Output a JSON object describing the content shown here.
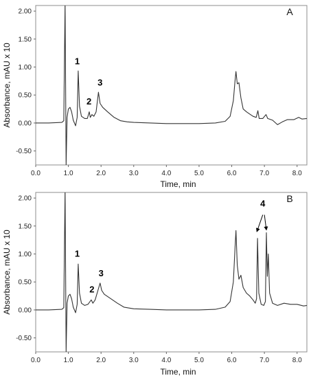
{
  "chart_data": [
    {
      "type": "line",
      "panel_label": "A",
      "xlabel": "Time, min",
      "ylabel": "Absorbance, mAU x 10",
      "xlim": [
        0.0,
        8.3
      ],
      "ylim": [
        -0.75,
        2.1
      ],
      "x_ticks": [
        "0.0",
        "1.0",
        "2.0",
        "3.0",
        "4.0",
        "5.0",
        "6.0",
        "7.0",
        "8.0"
      ],
      "y_ticks": [
        "2.00",
        "1.50",
        "1.00",
        "0.50",
        "0.00",
        "-0.50"
      ],
      "series": [
        {
          "color": "#333333",
          "points": [
            [
              0.0,
              0.0
            ],
            [
              0.4,
              0.0
            ],
            [
              0.8,
              0.01
            ],
            [
              0.86,
              0.04
            ],
            [
              0.9,
              2.15
            ],
            [
              0.93,
              -0.75
            ],
            [
              0.96,
              0.1
            ],
            [
              1.0,
              0.25
            ],
            [
              1.05,
              0.28
            ],
            [
              1.1,
              0.2
            ],
            [
              1.15,
              0.05
            ],
            [
              1.22,
              -0.05
            ],
            [
              1.27,
              0.1
            ],
            [
              1.3,
              0.93
            ],
            [
              1.34,
              0.3
            ],
            [
              1.4,
              0.12
            ],
            [
              1.5,
              0.08
            ],
            [
              1.58,
              0.08
            ],
            [
              1.64,
              0.2
            ],
            [
              1.67,
              0.1
            ],
            [
              1.72,
              0.15
            ],
            [
              1.78,
              0.12
            ],
            [
              1.85,
              0.2
            ],
            [
              1.92,
              0.55
            ],
            [
              1.97,
              0.35
            ],
            [
              2.05,
              0.28
            ],
            [
              2.2,
              0.2
            ],
            [
              2.4,
              0.1
            ],
            [
              2.6,
              0.04
            ],
            [
              2.8,
              0.02
            ],
            [
              3.0,
              0.01
            ],
            [
              3.5,
              0.0
            ],
            [
              4.0,
              -0.01
            ],
            [
              4.5,
              -0.01
            ],
            [
              5.0,
              -0.01
            ],
            [
              5.5,
              0.0
            ],
            [
              5.8,
              0.03
            ],
            [
              5.95,
              0.12
            ],
            [
              6.05,
              0.4
            ],
            [
              6.1,
              0.75
            ],
            [
              6.13,
              0.92
            ],
            [
              6.17,
              0.7
            ],
            [
              6.22,
              0.72
            ],
            [
              6.28,
              0.45
            ],
            [
              6.35,
              0.25
            ],
            [
              6.45,
              0.2
            ],
            [
              6.55,
              0.16
            ],
            [
              6.65,
              0.12
            ],
            [
              6.75,
              0.1
            ],
            [
              6.8,
              0.22
            ],
            [
              6.84,
              0.08
            ],
            [
              6.95,
              0.08
            ],
            [
              7.05,
              0.15
            ],
            [
              7.1,
              0.08
            ],
            [
              7.25,
              0.05
            ],
            [
              7.4,
              -0.03
            ],
            [
              7.55,
              0.02
            ],
            [
              7.7,
              0.06
            ],
            [
              7.9,
              0.06
            ],
            [
              8.05,
              0.1
            ],
            [
              8.15,
              0.07
            ],
            [
              8.3,
              0.08
            ]
          ]
        }
      ],
      "annotations": [
        {
          "text": "1",
          "x": 1.27,
          "y": 1.05
        },
        {
          "text": "2",
          "x": 1.63,
          "y": 0.33
        },
        {
          "text": "3",
          "x": 1.97,
          "y": 0.67
        }
      ]
    },
    {
      "type": "line",
      "panel_label": "B",
      "xlabel": "Time, min",
      "ylabel": "Absorbance, mAU x 10",
      "xlim": [
        0.0,
        8.3
      ],
      "ylim": [
        -0.75,
        2.1
      ],
      "x_ticks": [
        "0.0",
        "1.0",
        "2.0",
        "3.0",
        "4.0",
        "5.0",
        "6.0",
        "7.0",
        "8.0"
      ],
      "y_ticks": [
        "2.00",
        "1.50",
        "1.00",
        "0.50",
        "0.00",
        "-0.50"
      ],
      "series": [
        {
          "color": "#333333",
          "points": [
            [
              0.0,
              0.0
            ],
            [
              0.4,
              0.0
            ],
            [
              0.8,
              0.01
            ],
            [
              0.86,
              0.04
            ],
            [
              0.9,
              2.15
            ],
            [
              0.93,
              -0.75
            ],
            [
              0.96,
              0.12
            ],
            [
              1.0,
              0.25
            ],
            [
              1.05,
              0.28
            ],
            [
              1.1,
              0.2
            ],
            [
              1.15,
              0.05
            ],
            [
              1.22,
              -0.05
            ],
            [
              1.27,
              0.1
            ],
            [
              1.3,
              0.82
            ],
            [
              1.34,
              0.3
            ],
            [
              1.4,
              0.12
            ],
            [
              1.5,
              0.08
            ],
            [
              1.6,
              0.1
            ],
            [
              1.7,
              0.18
            ],
            [
              1.75,
              0.12
            ],
            [
              1.82,
              0.18
            ],
            [
              1.92,
              0.38
            ],
            [
              1.97,
              0.48
            ],
            [
              2.02,
              0.35
            ],
            [
              2.1,
              0.28
            ],
            [
              2.3,
              0.2
            ],
            [
              2.5,
              0.12
            ],
            [
              2.7,
              0.05
            ],
            [
              3.0,
              0.02
            ],
            [
              3.5,
              0.01
            ],
            [
              4.0,
              0.0
            ],
            [
              4.5,
              0.0
            ],
            [
              5.0,
              0.0
            ],
            [
              5.5,
              0.01
            ],
            [
              5.8,
              0.05
            ],
            [
              5.95,
              0.15
            ],
            [
              6.05,
              0.5
            ],
            [
              6.1,
              1.1
            ],
            [
              6.13,
              1.42
            ],
            [
              6.17,
              0.8
            ],
            [
              6.22,
              0.55
            ],
            [
              6.28,
              0.62
            ],
            [
              6.35,
              0.4
            ],
            [
              6.45,
              0.3
            ],
            [
              6.55,
              0.25
            ],
            [
              6.65,
              0.18
            ],
            [
              6.72,
              0.12
            ],
            [
              6.76,
              0.2
            ],
            [
              6.79,
              1.28
            ],
            [
              6.83,
              0.3
            ],
            [
              6.9,
              0.1
            ],
            [
              6.98,
              0.08
            ],
            [
              7.03,
              0.15
            ],
            [
              7.06,
              1.38
            ],
            [
              7.09,
              0.6
            ],
            [
              7.12,
              1.0
            ],
            [
              7.16,
              0.3
            ],
            [
              7.25,
              0.12
            ],
            [
              7.4,
              0.08
            ],
            [
              7.6,
              0.12
            ],
            [
              7.8,
              0.1
            ],
            [
              8.0,
              0.1
            ],
            [
              8.2,
              0.07
            ],
            [
              8.3,
              0.08
            ]
          ]
        }
      ],
      "annotations": [
        {
          "text": "1",
          "x": 1.27,
          "y": 0.95
        },
        {
          "text": "2",
          "x": 1.72,
          "y": 0.31
        },
        {
          "text": "3",
          "x": 2.0,
          "y": 0.6
        },
        {
          "text": "4",
          "x": 6.95,
          "y": 1.85
        }
      ],
      "arrows": [
        {
          "from": [
            6.95,
            1.7
          ],
          "to": [
            6.77,
            1.4
          ]
        },
        {
          "from": [
            7.0,
            1.7
          ],
          "to": [
            7.06,
            1.43
          ]
        }
      ]
    }
  ]
}
